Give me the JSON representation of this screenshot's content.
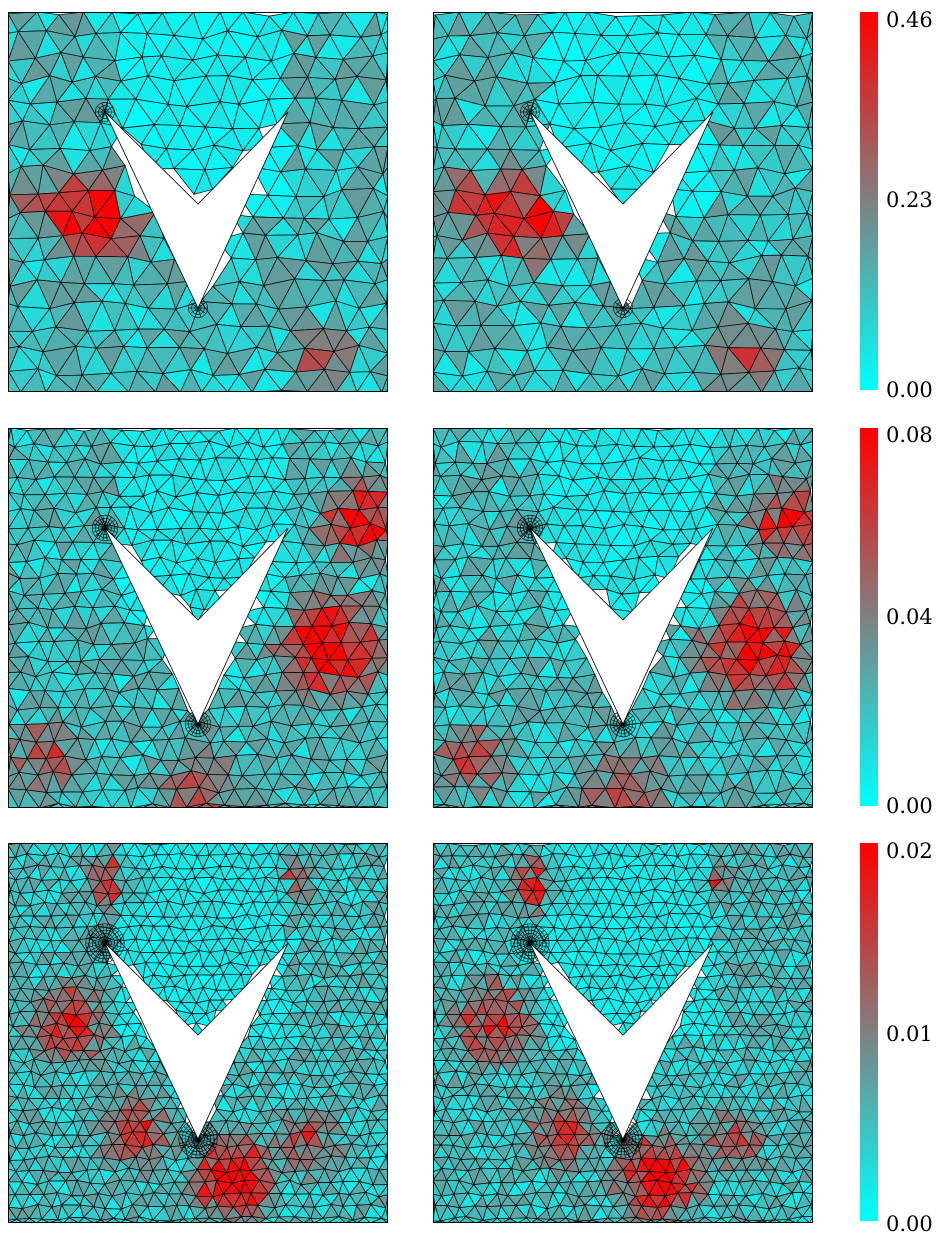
{
  "figure": {
    "rows": [
      {
        "id": "row-1",
        "panels": [
          "mesh-error-left",
          "mesh-error-right"
        ],
        "colorbar": {
          "max": "0.46",
          "mid": "0.23",
          "min": "0.00"
        }
      },
      {
        "id": "row-2",
        "panels": [
          "mesh-error-left",
          "mesh-error-right"
        ],
        "colorbar": {
          "max": "0.08",
          "mid": "0.04",
          "min": "0.00"
        }
      },
      {
        "id": "row-3",
        "panels": [
          "mesh-error-left",
          "mesh-error-right"
        ],
        "colorbar": {
          "max": "0.02",
          "mid": "0.01",
          "min": "0.00"
        }
      }
    ],
    "colormap": {
      "low": "#00ffff",
      "mid": "#808080",
      "high": "#ff0000"
    },
    "edge_color": "#000000",
    "domain_shape": "square-with-chevron-hole"
  }
}
